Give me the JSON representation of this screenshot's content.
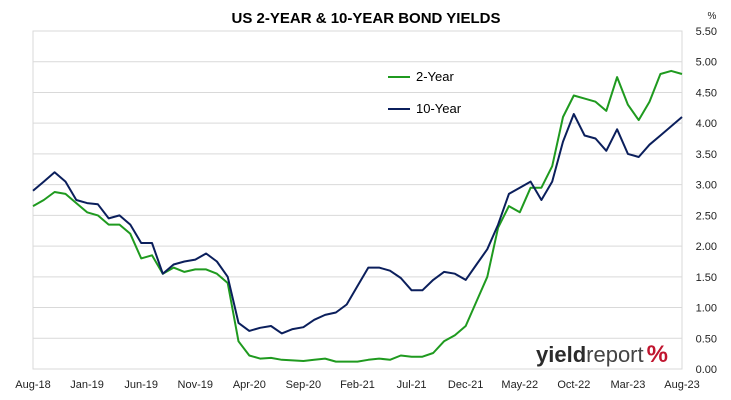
{
  "chart_data": {
    "type": "line",
    "title": "US 2-YEAR & 10-YEAR BOND YIELDS",
    "unit_label": "%",
    "ylim": [
      0,
      5.5
    ],
    "yticks": [
      "0.00",
      "0.50",
      "1.00",
      "1.50",
      "2.00",
      "2.50",
      "3.00",
      "3.50",
      "4.00",
      "4.50",
      "5.00",
      "5.50"
    ],
    "xlim": [
      "2018-08",
      "2023-08"
    ],
    "xticks": [
      "Aug-18",
      "Jan-19",
      "Jun-19",
      "Nov-19",
      "Apr-20",
      "Sep-20",
      "Feb-21",
      "Jul-21",
      "Dec-21",
      "May-22",
      "Oct-22",
      "Mar-23",
      "Aug-23"
    ],
    "grid": true,
    "legend_position": "top-center",
    "logo": {
      "part1": "yield",
      "part2": "report",
      "part3": "%"
    },
    "colors": {
      "two_year": "#1f9a1f",
      "ten_year": "#0b1f5c",
      "grid": "#d9d9d9"
    },
    "series": [
      {
        "name": "2-Year",
        "x": [
          "2018-08",
          "2018-09",
          "2018-10",
          "2018-11",
          "2018-12",
          "2019-01",
          "2019-02",
          "2019-03",
          "2019-04",
          "2019-05",
          "2019-06",
          "2019-07",
          "2019-08",
          "2019-09",
          "2019-10",
          "2019-11",
          "2019-12",
          "2020-01",
          "2020-02",
          "2020-03",
          "2020-04",
          "2020-05",
          "2020-06",
          "2020-07",
          "2020-08",
          "2020-09",
          "2020-10",
          "2020-11",
          "2020-12",
          "2021-01",
          "2021-02",
          "2021-03",
          "2021-04",
          "2021-05",
          "2021-06",
          "2021-07",
          "2021-08",
          "2021-09",
          "2021-10",
          "2021-11",
          "2021-12",
          "2022-01",
          "2022-02",
          "2022-03",
          "2022-04",
          "2022-05",
          "2022-06",
          "2022-07",
          "2022-08",
          "2022-09",
          "2022-10",
          "2022-11",
          "2022-12",
          "2023-01",
          "2023-02",
          "2023-03",
          "2023-04",
          "2023-05",
          "2023-06",
          "2023-07",
          "2023-08"
        ],
        "values": [
          2.65,
          2.75,
          2.88,
          2.85,
          2.7,
          2.55,
          2.5,
          2.35,
          2.35,
          2.2,
          1.8,
          1.85,
          1.55,
          1.65,
          1.58,
          1.62,
          1.62,
          1.55,
          1.4,
          0.45,
          0.22,
          0.17,
          0.18,
          0.15,
          0.14,
          0.13,
          0.15,
          0.17,
          0.12,
          0.12,
          0.12,
          0.15,
          0.17,
          0.15,
          0.22,
          0.2,
          0.2,
          0.26,
          0.45,
          0.55,
          0.7,
          1.1,
          1.5,
          2.3,
          2.65,
          2.55,
          2.95,
          2.95,
          3.3,
          4.1,
          4.45,
          4.4,
          4.35,
          4.2,
          4.75,
          4.3,
          4.05,
          4.35,
          4.8,
          4.85,
          4.8
        ]
      },
      {
        "name": "10-Year",
        "x": [
          "2018-08",
          "2018-09",
          "2018-10",
          "2018-11",
          "2018-12",
          "2019-01",
          "2019-02",
          "2019-03",
          "2019-04",
          "2019-05",
          "2019-06",
          "2019-07",
          "2019-08",
          "2019-09",
          "2019-10",
          "2019-11",
          "2019-12",
          "2020-01",
          "2020-02",
          "2020-03",
          "2020-04",
          "2020-05",
          "2020-06",
          "2020-07",
          "2020-08",
          "2020-09",
          "2020-10",
          "2020-11",
          "2020-12",
          "2021-01",
          "2021-02",
          "2021-03",
          "2021-04",
          "2021-05",
          "2021-06",
          "2021-07",
          "2021-08",
          "2021-09",
          "2021-10",
          "2021-11",
          "2021-12",
          "2022-01",
          "2022-02",
          "2022-03",
          "2022-04",
          "2022-05",
          "2022-06",
          "2022-07",
          "2022-08",
          "2022-09",
          "2022-10",
          "2022-11",
          "2022-12",
          "2023-01",
          "2023-02",
          "2023-03",
          "2023-04",
          "2023-05",
          "2023-06",
          "2023-07",
          "2023-08"
        ],
        "values": [
          2.9,
          3.05,
          3.2,
          3.05,
          2.75,
          2.7,
          2.68,
          2.45,
          2.5,
          2.35,
          2.05,
          2.05,
          1.55,
          1.7,
          1.75,
          1.78,
          1.88,
          1.75,
          1.5,
          0.75,
          0.62,
          0.67,
          0.7,
          0.58,
          0.65,
          0.68,
          0.8,
          0.88,
          0.92,
          1.05,
          1.35,
          1.65,
          1.65,
          1.6,
          1.48,
          1.28,
          1.28,
          1.45,
          1.58,
          1.55,
          1.45,
          1.7,
          1.95,
          2.35,
          2.85,
          2.95,
          3.05,
          2.75,
          3.05,
          3.7,
          4.15,
          3.8,
          3.75,
          3.55,
          3.9,
          3.5,
          3.45,
          3.65,
          3.8,
          3.95,
          4.1
        ]
      }
    ]
  }
}
